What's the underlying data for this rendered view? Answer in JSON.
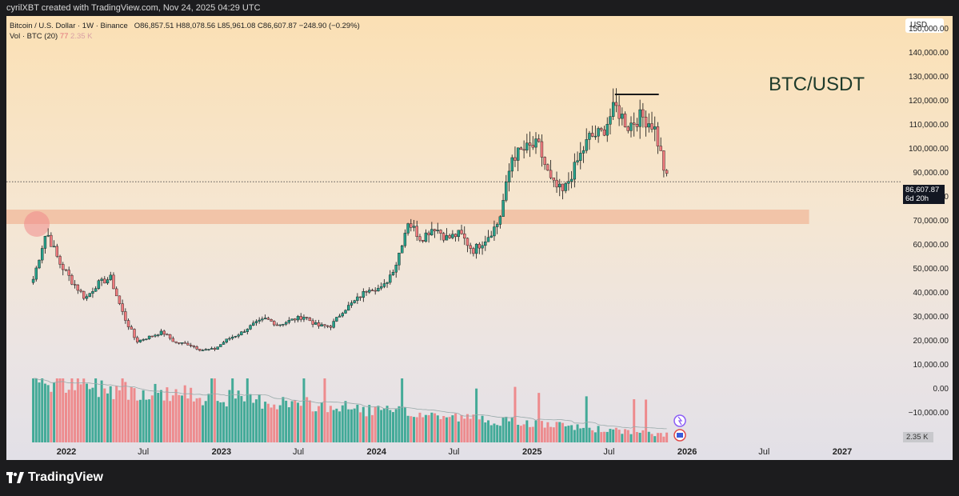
{
  "header": {
    "credit": "cyrilXBT created with TradingView.com, Nov 24, 2025 04:29 UTC"
  },
  "legend": {
    "symbol": "Bitcoin / U.S. Dollar · 1W · Binance",
    "open": "O86,857.51",
    "high": "H88,078.56",
    "low": "L85,961.08",
    "close": "C86,607.87",
    "change": "−248.90 (−0.29%)",
    "vol_label": "Vol · BTC (20)",
    "vol_value": "77",
    "vol_avg": "2.35 K"
  },
  "currency": "USD",
  "pair_title": "BTC/USDT",
  "price_label": {
    "price": "86,607.87",
    "countdown": "6d 20h"
  },
  "volume_label": "2.35 K",
  "brand": "TradingView",
  "icon_names": [
    "tradingview-logo-icon",
    "lightning-flag-icon",
    "us-flag-icon"
  ],
  "colors": {
    "up": "#26a08a",
    "down": "#ef7b7e",
    "zone": "#f0b89a",
    "highlight": "#f08a8a",
    "top_line": "#1a1a1a"
  },
  "chart_data": {
    "type": "candlestick",
    "title": "",
    "timeframe": "1W",
    "y_axis": {
      "unit": "USD",
      "ticks": [
        "150,000.00",
        "140,000.00",
        "130,000.00",
        "120,000.00",
        "110,000.00",
        "100,000.00",
        "90,000.00",
        "80,000.00",
        "70,000.00",
        "60,000.00",
        "50,000.00",
        "40,000.00",
        "30,000.00",
        "20,000.00",
        "10,000.00",
        "0.00",
        "−10,000.00"
      ],
      "range": [
        -10000,
        150000
      ]
    },
    "x_axis": {
      "ticks": [
        "2022",
        "Jul",
        "2023",
        "Jul",
        "2024",
        "Jul",
        "2025",
        "Jul",
        "2026",
        "Jul",
        "2027"
      ],
      "bold_ticks": [
        "2022",
        "2023",
        "2024",
        "2025",
        "2026",
        "2027"
      ]
    },
    "support_zone": {
      "from": 69000,
      "to": 75000,
      "start_date": "2021-10",
      "end_date": "2026-10"
    },
    "double_top_line": {
      "price": 123000,
      "from_date": "2025-07",
      "to_date": "2025-10"
    },
    "highlight_circle": {
      "date": "2021-11",
      "price": 69000
    },
    "current_price_line": 86607.87,
    "keypoints": [
      {
        "date": "2021-10",
        "price": 46000
      },
      {
        "date": "2021-11",
        "price": 66000
      },
      {
        "date": "2021-12",
        "price": 53000
      },
      {
        "date": "2022-01",
        "price": 45000
      },
      {
        "date": "2022-02",
        "price": 38000
      },
      {
        "date": "2022-03",
        "price": 44000
      },
      {
        "date": "2022-04",
        "price": 46500
      },
      {
        "date": "2022-05",
        "price": 31000
      },
      {
        "date": "2022-06",
        "price": 20000
      },
      {
        "date": "2022-07",
        "price": 22000
      },
      {
        "date": "2022-08",
        "price": 24000
      },
      {
        "date": "2022-09",
        "price": 19500
      },
      {
        "date": "2022-10",
        "price": 19000
      },
      {
        "date": "2022-11",
        "price": 16500
      },
      {
        "date": "2022-12",
        "price": 16800
      },
      {
        "date": "2023-01",
        "price": 21000
      },
      {
        "date": "2023-02",
        "price": 23500
      },
      {
        "date": "2023-03",
        "price": 27000
      },
      {
        "date": "2023-04",
        "price": 29500
      },
      {
        "date": "2023-05",
        "price": 27000
      },
      {
        "date": "2023-06",
        "price": 29000
      },
      {
        "date": "2023-07",
        "price": 30500
      },
      {
        "date": "2023-08",
        "price": 26500
      },
      {
        "date": "2023-09",
        "price": 26500
      },
      {
        "date": "2023-10",
        "price": 33000
      },
      {
        "date": "2023-11",
        "price": 37500
      },
      {
        "date": "2023-12",
        "price": 42500
      },
      {
        "date": "2024-01",
        "price": 42000
      },
      {
        "date": "2024-02",
        "price": 52000
      },
      {
        "date": "2024-03",
        "price": 70000
      },
      {
        "date": "2024-04",
        "price": 63000
      },
      {
        "date": "2024-05",
        "price": 68000
      },
      {
        "date": "2024-06",
        "price": 63000
      },
      {
        "date": "2024-07",
        "price": 65000
      },
      {
        "date": "2024-08",
        "price": 58000
      },
      {
        "date": "2024-09",
        "price": 63000
      },
      {
        "date": "2024-10",
        "price": 70000
      },
      {
        "date": "2024-11",
        "price": 97000
      },
      {
        "date": "2024-12",
        "price": 100000
      },
      {
        "date": "2025-01",
        "price": 102000
      },
      {
        "date": "2025-02",
        "price": 86000
      },
      {
        "date": "2025-03",
        "price": 82000
      },
      {
        "date": "2025-04",
        "price": 94000
      },
      {
        "date": "2025-05",
        "price": 105000
      },
      {
        "date": "2025-06",
        "price": 107000
      },
      {
        "date": "2025-07",
        "price": 118000
      },
      {
        "date": "2025-08",
        "price": 110000
      },
      {
        "date": "2025-09",
        "price": 114000
      },
      {
        "date": "2025-10",
        "price": 110000
      },
      {
        "date": "2025-11",
        "price": 86600
      }
    ]
  }
}
